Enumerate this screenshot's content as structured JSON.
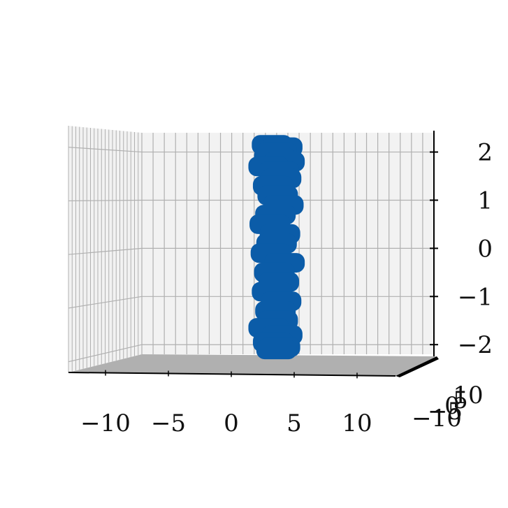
{
  "chart_data": {
    "type": "scatter",
    "projection": "3d",
    "title": "",
    "xlabel": "",
    "ylabel": "",
    "zlabel": "",
    "grid": true,
    "x_ticks": [
      "−10",
      "−5",
      "0",
      "5",
      "10"
    ],
    "y_ticks": [
      "−10",
      "−5",
      "0",
      "5",
      "10"
    ],
    "z_ticks": [
      "−2",
      "−1",
      "0",
      "1",
      "2"
    ],
    "xlim": [
      -12.5,
      13.5
    ],
    "ylim": [
      -10,
      10
    ],
    "zlim": [
      -2.2,
      2.4
    ],
    "marker_color": "#0b5ca8",
    "pane_color": "#f2f2f2",
    "floor_color": "#b0b0b0",
    "grid_color": "#b0b0b0",
    "series": [
      {
        "x": [
          3.2,
          4.1,
          3.6,
          3.4,
          4.3,
          2.9,
          3.8,
          4.0,
          3.3,
          3.7,
          4.2,
          3.5,
          3.0,
          3.9,
          3.6,
          3.1,
          4.3,
          3.4,
          3.8,
          3.2,
          4.0,
          3.5,
          3.7,
          2.9,
          4.1,
          3.3,
          3.9,
          3.6
        ],
        "z": [
          2.15,
          2.1,
          2.0,
          1.9,
          1.8,
          1.7,
          1.6,
          1.45,
          1.3,
          1.1,
          0.9,
          0.7,
          0.5,
          0.3,
          0.1,
          -0.1,
          -0.3,
          -0.5,
          -0.7,
          -0.9,
          -1.1,
          -1.3,
          -1.5,
          -1.65,
          -1.8,
          -1.95,
          -2.05,
          -2.1
        ]
      }
    ]
  }
}
